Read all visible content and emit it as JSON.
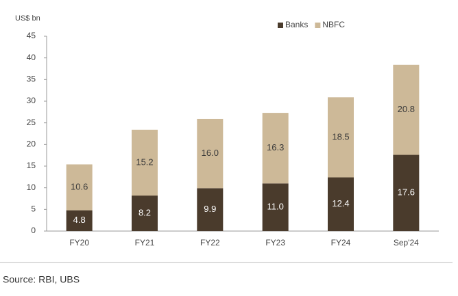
{
  "chart_data": {
    "type": "stacked_bar",
    "y_label": "US$ bn",
    "categories": [
      "FY20",
      "FY21",
      "FY22",
      "FY23",
      "FY24",
      "Sep'24"
    ],
    "series": [
      {
        "name": "Banks",
        "color": "#4a3b2c",
        "label_color": "#ffffff",
        "values": [
          4.8,
          8.2,
          9.9,
          11.0,
          12.4,
          17.6
        ],
        "value_labels": [
          "4.8",
          "8.2",
          "9.9",
          "11.0",
          "12.4",
          "17.6"
        ]
      },
      {
        "name": "NBFC",
        "color": "#cdb998",
        "label_color": "#3a3a3a",
        "values": [
          10.6,
          15.2,
          16.0,
          16.3,
          18.5,
          20.8
        ],
        "value_labels": [
          "10.6",
          "15.2",
          "16.0",
          "16.3",
          "18.5",
          "20.8"
        ]
      }
    ],
    "ylim": [
      0,
      45
    ],
    "yticks": [
      0,
      5,
      10,
      15,
      20,
      25,
      30,
      35,
      40,
      45
    ],
    "grid": false,
    "legend": "top-right"
  },
  "source": "Source: RBI, UBS"
}
